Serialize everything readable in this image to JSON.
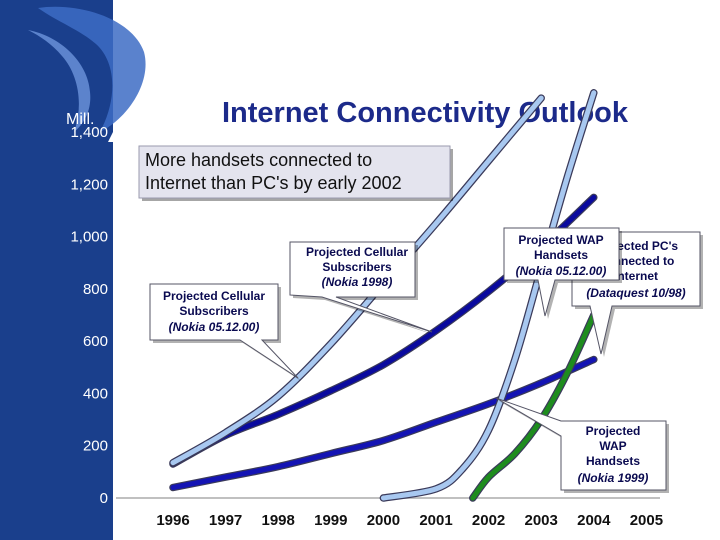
{
  "header": {
    "title": "Internet Connectivity Outlook",
    "unit": "Mill."
  },
  "headline": {
    "lines": [
      "More handsets connected to",
      "Internet than PC's by early 2002"
    ]
  },
  "callouts": [
    {
      "id": "cell-1998",
      "lines": [
        "Projected Cellular",
        "Subscribers",
        "(Nokia 1998)"
      ]
    },
    {
      "id": "cell-2000",
      "lines": [
        "Projected Cellular",
        "Subscribers",
        "(Nokia 05.12.00)"
      ]
    },
    {
      "id": "pc",
      "lines": [
        "Projected PC's",
        "Connected to",
        "Internet",
        "(Dataquest 10/98)"
      ]
    },
    {
      "id": "wap-2000",
      "lines": [
        "Projected WAP",
        "Handsets",
        "(Nokia 05.12.00)"
      ]
    },
    {
      "id": "wap-1999",
      "lines": [
        "Projected",
        "WAP",
        "Handsets",
        "(Nokia 1999)"
      ]
    }
  ],
  "colors": {
    "band": "#1a3f8c",
    "title": "#1c2a8a",
    "cellular_1998": "#0a0a9e",
    "cellular_2000": "#a8c8f0",
    "pc": "#1414b4",
    "wap_1999": "#1e8c1e",
    "wap_2000": "#a8c8f0"
  },
  "chart_data": {
    "type": "line",
    "title": "Internet Connectivity Outlook",
    "ylabel": "Mill.",
    "xlabel": "",
    "x": [
      1996,
      1997,
      1998,
      1999,
      2000,
      2001,
      2002,
      2003,
      2004,
      2005
    ],
    "x_tick_labels": [
      "1996",
      "1997",
      "1998",
      "1999",
      "2000",
      "2001",
      "2002",
      "2003",
      "2004",
      "2005"
    ],
    "y_ticks": [
      0,
      200,
      400,
      600,
      800,
      1000,
      1200,
      1400
    ],
    "y_tick_labels": [
      "0",
      "200",
      "400",
      "600",
      "800",
      "1,000",
      "1,200",
      "1,400"
    ],
    "ylim": [
      0,
      1400
    ],
    "grid": false,
    "series": [
      {
        "name": "Projected Cellular Subscribers (Nokia 1998)",
        "color": "#0a0a9e",
        "x": [
          1996,
          1997,
          1998,
          1999,
          2000,
          2001,
          2002,
          2003,
          2004
        ],
        "values": [
          130,
          240,
          320,
          410,
          510,
          640,
          790,
          960,
          1150
        ]
      },
      {
        "name": "Projected Cellular Subscribers (Nokia 05.12.00)",
        "color": "#a8c8f0",
        "x": [
          1996,
          1997,
          1998,
          1999,
          2000,
          2001,
          2002,
          2003
        ],
        "values": [
          135,
          250,
          390,
          590,
          820,
          1050,
          1290,
          1530
        ]
      },
      {
        "name": "Projected PC's Connected to Internet (Dataquest 10/98)",
        "color": "#1414b4",
        "x": [
          1996,
          1997,
          1998,
          1999,
          2000,
          2001,
          2002,
          2003,
          2004
        ],
        "values": [
          40,
          80,
          120,
          170,
          220,
          290,
          360,
          440,
          530
        ]
      },
      {
        "name": "Projected WAP Handsets (Nokia 1999)",
        "color": "#1e8c1e",
        "x": [
          2001.7,
          2002,
          2002.5,
          2003,
          2003.5,
          2004
        ],
        "values": [
          0,
          80,
          170,
          300,
          480,
          700
        ]
      },
      {
        "name": "Projected WAP Handsets (Nokia 05.12.00)",
        "color": "#a8c8f0",
        "x": [
          2000,
          2001,
          2001.5,
          2002,
          2002.5,
          2003,
          2003.5,
          2004
        ],
        "values": [
          0,
          35,
          110,
          260,
          530,
          880,
          1230,
          1550
        ]
      }
    ]
  }
}
